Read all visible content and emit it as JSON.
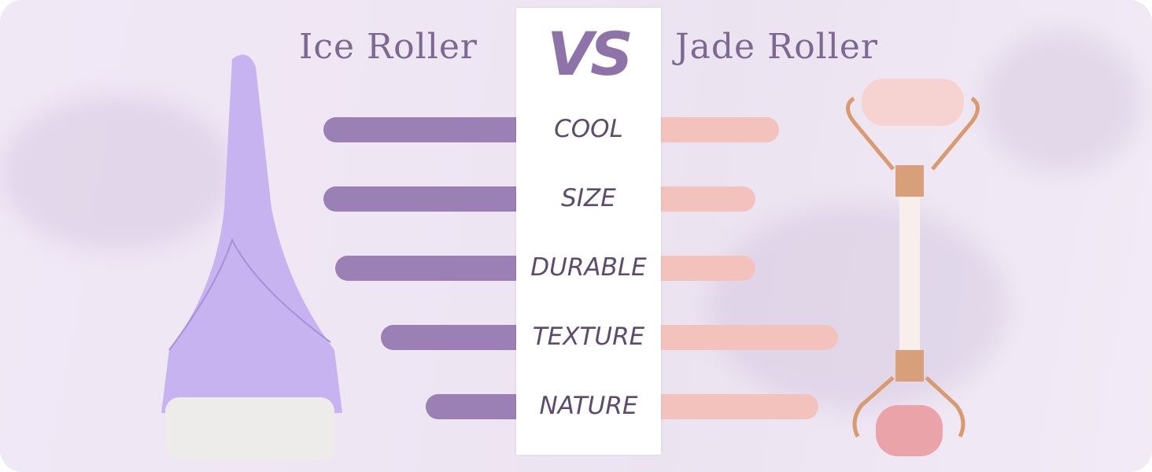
{
  "header": {
    "left_title": "Ice Roller",
    "center": "VS",
    "right_title": "Jade Roller"
  },
  "colors": {
    "ice": "#9a80b4",
    "jade": "#f4c2bc",
    "background": "#efe6f4"
  },
  "chart_data": {
    "type": "bar",
    "categories": [
      "COOL",
      "SIZE",
      "DURABLE",
      "TEXTURE",
      "NATURE"
    ],
    "series": [
      {
        "name": "Ice Roller",
        "values": [
          0.98,
          0.98,
          0.92,
          0.69,
          0.46
        ]
      },
      {
        "name": "Jade Roller",
        "values": [
          0.6,
          0.48,
          0.48,
          0.9,
          0.8
        ]
      }
    ],
    "ylim": [
      0,
      1
    ]
  }
}
